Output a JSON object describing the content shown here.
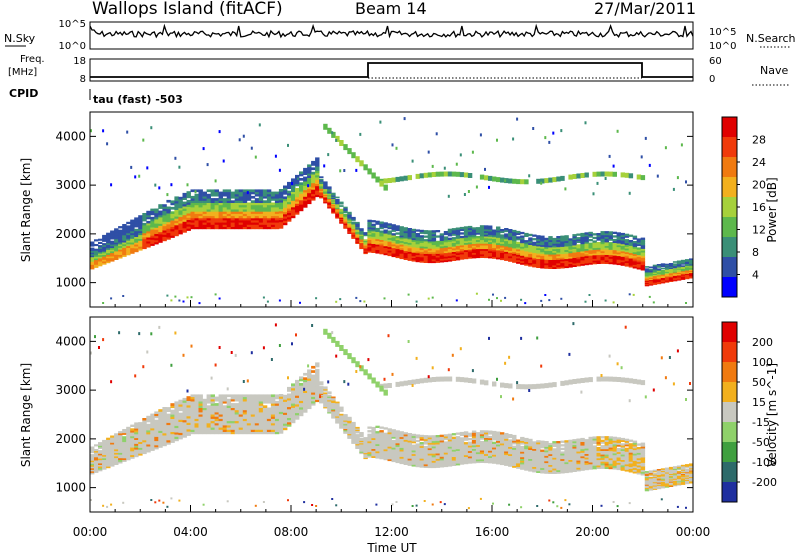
{
  "header": {
    "station": "Wallops Island (fitACF)",
    "beam": "Beam 14",
    "date": "27/Mar/2011"
  },
  "top_panels": {
    "nsky_label": "N.Sky",
    "nsky_ticks": [
      "10^5",
      "10^0"
    ],
    "nsearch_label": "N.Search",
    "nsearch_ticks": [
      "10^5",
      "10^0"
    ],
    "freq_label": "Freq.",
    "freq_unit": "[MHz]",
    "freq_ticks": [
      "18",
      "8"
    ],
    "nave_label": "Nave",
    "nave_ticks": [
      "60",
      "0"
    ],
    "cpid_label": "CPID",
    "cpid_text": "tau (fast) -503"
  },
  "colors": {
    "power_scale": [
      "#0000ff",
      "#2f4fa6",
      "#3a8f77",
      "#5db84c",
      "#a6d13b",
      "#f2b01e",
      "#f07a10",
      "#f03a0a",
      "#e00000"
    ],
    "velocity_scale": [
      "#1f2f9f",
      "#2d6a6a",
      "#3f9f3f",
      "#8fd16a",
      "#c8c8c0",
      "#f2b01e",
      "#f07a10",
      "#f03a0a",
      "#e00000"
    ]
  },
  "chart_data": [
    {
      "type": "heatmap",
      "panel": "power",
      "xlabel": "Time UT",
      "ylabel": "Slant Range [km]",
      "x_ticks": [
        "00:00",
        "04:00",
        "08:00",
        "12:00",
        "16:00",
        "20:00",
        "00:00"
      ],
      "y_ticks": [
        1000,
        2000,
        3000,
        4000
      ],
      "ylim": [
        500,
        4500
      ],
      "colorbar_label": "Power [dB]",
      "colorbar_ticks": [
        28,
        24,
        20,
        16,
        12,
        8,
        4
      ],
      "colorbar_range": [
        0,
        30
      ]
    },
    {
      "type": "heatmap",
      "panel": "velocity",
      "xlabel": "Time UT",
      "ylabel": "Slant Range [km]",
      "x_ticks": [
        "00:00",
        "04:00",
        "08:00",
        "12:00",
        "16:00",
        "20:00",
        "00:00"
      ],
      "y_ticks": [
        1000,
        2000,
        3000,
        4000
      ],
      "ylim": [
        500,
        4500
      ],
      "colorbar_label": "Velocity [m s^-1]",
      "colorbar_ticks": [
        200,
        100,
        50,
        15,
        -15,
        -50,
        -100,
        -200
      ]
    }
  ]
}
